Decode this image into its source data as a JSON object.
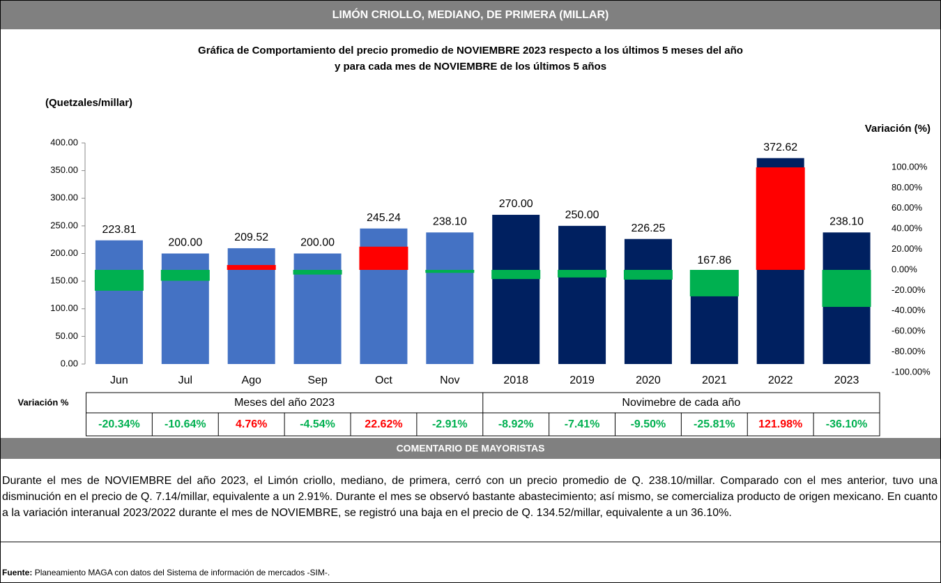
{
  "chart_data": {
    "type": "bar",
    "title": "LIMÓN CRIOLLO, MEDIANO, DE PRIMERA (MILLAR)",
    "subtitle_lines": [
      "Gráfica de Comportamiento del precio promedio de NOVIEMBRE 2023 respecto a los últimos 5 meses del año",
      "y para cada mes de NOVIEMBRE de los últimos 5 años"
    ],
    "ylabel": "(Quetzales/millar)",
    "y2label": "Variación (%)",
    "categories": [
      "Jun",
      "Jul",
      "Ago",
      "Sep",
      "Oct",
      "Nov",
      "2018",
      "2019",
      "2020",
      "2021",
      "2022",
      "2023"
    ],
    "series": [
      {
        "values": [
          223.81,
          200.0,
          209.52,
          200.0,
          245.24,
          238.1,
          270.0,
          250.0,
          226.25,
          167.86,
          372.62,
          238.1
        ],
        "value_labels": [
          "223.81",
          "200.00",
          "209.52",
          "200.00",
          "245.24",
          "238.10",
          "270.00",
          "250.00",
          "226.25",
          "167.86",
          "372.62",
          "238.10"
        ],
        "colors": [
          "#4472c4",
          "#4472c4",
          "#4472c4",
          "#4472c4",
          "#4472c4",
          "#4472c4",
          "#002060",
          "#002060",
          "#002060",
          "#002060",
          "#002060",
          "#002060"
        ]
      },
      {
        "axis": "y2",
        "values": [
          -20.34,
          -10.64,
          4.76,
          -4.54,
          22.62,
          -2.91,
          -8.92,
          -7.41,
          -9.5,
          -25.81,
          121.98,
          -36.1
        ],
        "value_labels": [
          "-20.34%",
          "-10.64%",
          "4.76%",
          "-4.54%",
          "22.62%",
          "-2.91%",
          "-8.92%",
          "-7.41%",
          "-9.50%",
          "-25.81%",
          "121.98%",
          "-36.10%"
        ],
        "colors": [
          "#00b050",
          "#00b050",
          "#ff0000",
          "#00b050",
          "#ff0000",
          "#00b050",
          "#00b050",
          "#00b050",
          "#00b050",
          "#00b050",
          "#ff0000",
          "#00b050"
        ]
      }
    ],
    "ylim": [
      0,
      400
    ],
    "yticks": [
      {
        "value": 0,
        "label": "0.00"
      },
      {
        "value": 50,
        "label": "50.00"
      },
      {
        "value": 100,
        "label": "100.00"
      },
      {
        "value": 150,
        "label": "150.00"
      },
      {
        "value": 200,
        "label": "200.00"
      },
      {
        "value": 250,
        "label": "250.00"
      },
      {
        "value": 300,
        "label": "300.00"
      },
      {
        "value": 350,
        "label": "350.00"
      },
      {
        "value": 400,
        "label": "400.00"
      }
    ],
    "y2lim": [
      -100,
      100
    ],
    "y2ticks": [
      {
        "value": -100,
        "label": "-100.00%"
      },
      {
        "value": -80,
        "label": "-80.00%"
      },
      {
        "value": -60,
        "label": "-60.00%"
      },
      {
        "value": -40,
        "label": "-40.00%"
      },
      {
        "value": -20,
        "label": "-20.00%"
      },
      {
        "value": 0,
        "label": "0.00%"
      },
      {
        "value": 20,
        "label": "20.00%"
      },
      {
        "value": 40,
        "label": "40.00%"
      },
      {
        "value": 60,
        "label": "60.00%"
      },
      {
        "value": 80,
        "label": "80.00%"
      },
      {
        "value": 100,
        "label": "100.00%"
      }
    ],
    "table": {
      "row_label": "Variación %",
      "groups": [
        "Meses del año 2023",
        "Novimebre de cada año"
      ]
    }
  },
  "comment": {
    "title": "COMENTARIO DE MAYORISTAS",
    "text": "Durante el mes de NOVIEMBRE del año 2023, el Limón criollo, mediano, de primera, cerró con un precio promedio de Q. 238.10/millar. Comparado con el mes anterior, tuvo una disminución en el precio de Q. 7.14/millar, equivalente a un 2.91%. Durante el mes se observó bastante abastecimiento; así mismo, se comercializa producto de origen mexicano. En cuanto a la variación interanual 2023/2022 durante el mes de NOVIEMBRE, se registró una baja en el precio de Q. 134.52/millar, equivalente a un 36.10%."
  },
  "source": {
    "label": "Fuente:",
    "text": "Planeamiento MAGA con datos del Sistema de información de mercados -SIM-."
  }
}
